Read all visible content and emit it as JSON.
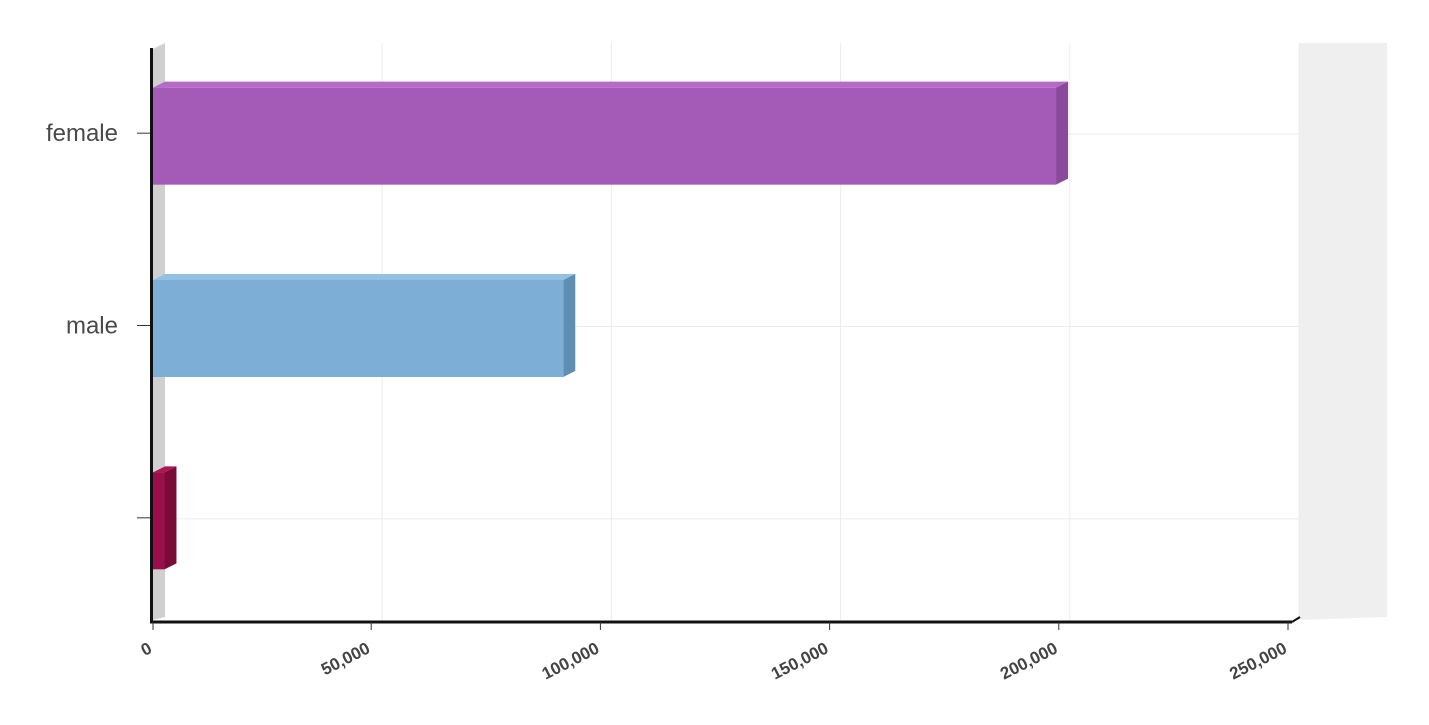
{
  "chart_data": {
    "type": "bar",
    "orientation": "horizontal",
    "style": "3d",
    "categories": [
      "female",
      "male",
      ""
    ],
    "values": [
      197000,
      89500,
      2500
    ],
    "colors": [
      "#a45bb8",
      "#7daed6",
      "#9a0f4a"
    ],
    "side_colors": [
      "#8a4a9c",
      "#5e8fb3",
      "#7a0a38"
    ],
    "top_colors": [
      "#b56ac8",
      "#93c0e3",
      "#b01558"
    ],
    "xlim": [
      0,
      250000
    ],
    "xticks": [
      0,
      50000,
      100000,
      150000,
      200000,
      250000
    ],
    "xtick_labels": [
      "0",
      "50,000",
      "100,000",
      "150,000",
      "200,000",
      "250,000"
    ],
    "grid": true,
    "title": "",
    "xlabel": "",
    "ylabel": ""
  }
}
